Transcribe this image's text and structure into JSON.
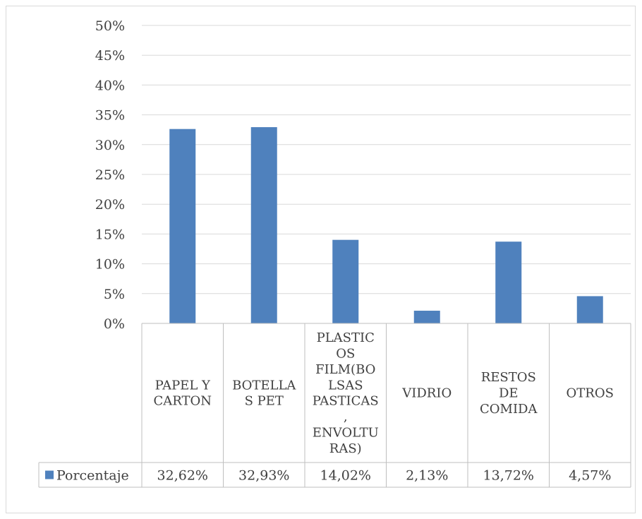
{
  "chart_data": {
    "type": "bar",
    "title": "",
    "xlabel": "",
    "ylabel": "",
    "ylim": [
      0,
      0.5
    ],
    "y_ticks": [
      "0%",
      "5%",
      "10%",
      "15%",
      "20%",
      "25%",
      "30%",
      "35%",
      "40%",
      "45%",
      "50%"
    ],
    "grid": true,
    "legend": "data-table-left",
    "categories": [
      [
        "PAPEL Y",
        "CARTON"
      ],
      [
        "BOTELLA",
        "S PET"
      ],
      [
        "PLASTIC",
        "OS",
        "FILM(BO",
        "LSAS",
        "PASTICAS",
        ",",
        "ENVOLTU",
        "RAS)"
      ],
      [
        "VIDRIO"
      ],
      [
        "RESTOS",
        "DE",
        "COMIDA"
      ],
      [
        "OTROS"
      ]
    ],
    "series": [
      {
        "name": "Porcentaje",
        "values": [
          0.3262,
          0.3293,
          0.1402,
          0.0213,
          0.1372,
          0.0457
        ],
        "labels": [
          "32,62%",
          "32,93%",
          "14,02%",
          "2,13%",
          "13,72%",
          "4,57%"
        ],
        "color": "#4f81bd"
      }
    ],
    "colors": {
      "gridline": "#d9d9d9",
      "text": "#404040",
      "table_border": "#bfbfbf"
    }
  }
}
